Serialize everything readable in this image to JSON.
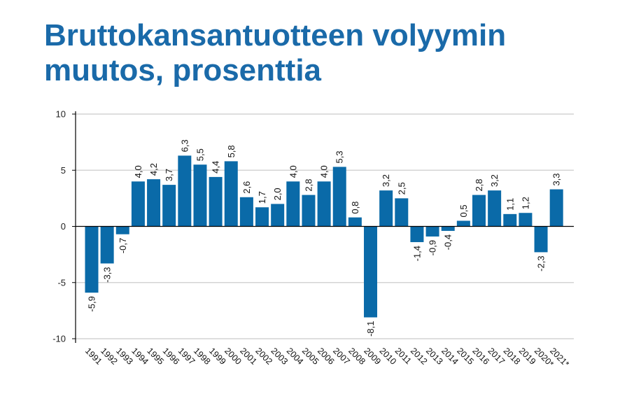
{
  "title_line1": "Bruttokansantuotteen volyymin",
  "title_line2": "muutos, prosenttia",
  "chart_data": {
    "type": "bar",
    "title": "Bruttokansantuotteen volyymin muutos, prosenttia",
    "xlabel": "",
    "ylabel": "",
    "ylim": [
      -10,
      10
    ],
    "yticks": [
      10,
      5,
      0,
      -5,
      -10
    ],
    "grid": true,
    "bar_color": "#0a6aa8",
    "categories": [
      "1991",
      "1992",
      "1993",
      "1994",
      "1995",
      "1996",
      "1997",
      "1998",
      "1999",
      "2000",
      "2001",
      "2002",
      "2003",
      "2004",
      "2005",
      "2006",
      "2007",
      "2008",
      "2009",
      "2010",
      "2011",
      "2012",
      "2013",
      "2014",
      "2015",
      "2016",
      "2017",
      "2018",
      "2019",
      "2020*",
      "2021*"
    ],
    "values": [
      -5.9,
      -3.3,
      -0.7,
      4.0,
      4.2,
      3.7,
      6.3,
      5.5,
      4.4,
      5.8,
      2.6,
      1.7,
      2.0,
      4.0,
      2.8,
      4.0,
      5.3,
      0.8,
      -8.1,
      3.2,
      2.5,
      -1.4,
      -0.9,
      -0.4,
      0.5,
      2.8,
      3.2,
      1.1,
      1.2,
      -2.3,
      3.3
    ],
    "data_labels": [
      "-5,9",
      "-3,3",
      "-0,7",
      "4,0",
      "4,2",
      "3,7",
      "6,3",
      "5,5",
      "4,4",
      "5,8",
      "2,6",
      "1,7",
      "2,0",
      "4,0",
      "2,8",
      "4,0",
      "5,3",
      "0,8",
      "-8,1",
      "3,2",
      "2,5",
      "-1,4",
      "-0,9",
      "-0,4",
      "0,5",
      "2,8",
      "3,2",
      "1,1",
      "1,2",
      "-2,3",
      "3,3"
    ],
    "ytick_labels": [
      "10",
      "5",
      "0",
      "-5",
      "-10"
    ]
  }
}
